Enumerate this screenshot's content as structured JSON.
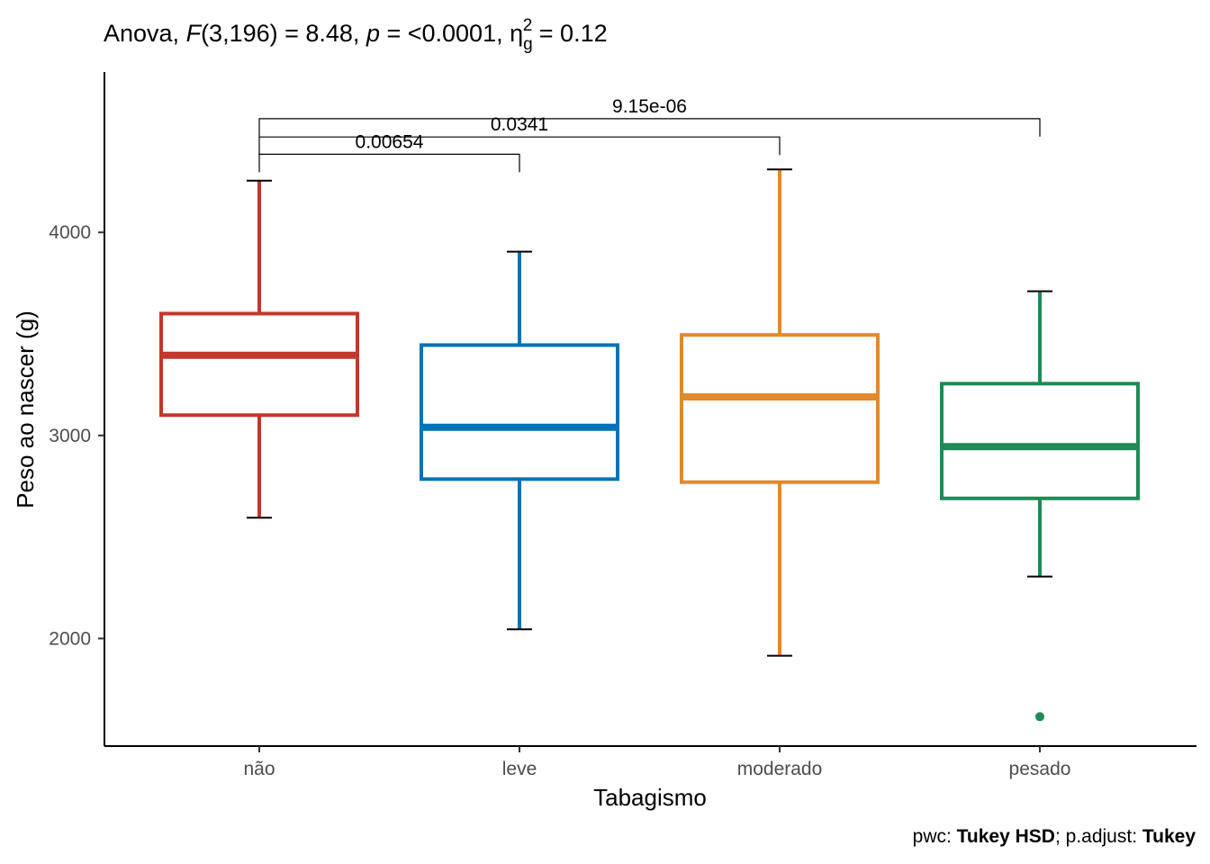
{
  "title": {
    "prefix": "Anova, ",
    "F_symbol": "F",
    "F_df": "(3,196) = 8.48, ",
    "p_symbol": "p",
    "p_value": " = <0.0001, ",
    "eta_symbol": "η",
    "eta_sub": "g",
    "eta_sup": "2",
    "eta_value": " = 0.12"
  },
  "caption": {
    "pwc_label": "pwc: ",
    "pwc_method": "Tukey HSD",
    "sep": "; p.adjust: ",
    "adjust_method": "Tukey"
  },
  "chart_data": {
    "type": "boxplot",
    "xlabel": "Tabagismo",
    "ylabel": "Peso ao nascer (g)",
    "ylim": [
      1470,
      4790
    ],
    "yticks": [
      2000,
      3000,
      4000
    ],
    "grid": false,
    "categories": [
      "não",
      "leve",
      "moderado",
      "pesado"
    ],
    "colors": [
      "#C0392B",
      "#0073B7",
      "#E08A2B",
      "#1F8A57"
    ],
    "boxes": [
      {
        "category": "não",
        "whisker_low": 2595,
        "q1": 3100,
        "median": 3395,
        "q3": 3600,
        "whisker_high": 4255,
        "outliers": []
      },
      {
        "category": "leve",
        "whisker_low": 2045,
        "q1": 2785,
        "median": 3040,
        "q3": 3445,
        "whisker_high": 3905,
        "outliers": []
      },
      {
        "category": "moderado",
        "whisker_low": 1915,
        "q1": 2770,
        "median": 3190,
        "q3": 3495,
        "whisker_high": 4310,
        "outliers": []
      },
      {
        "category": "pesado",
        "whisker_low": 2305,
        "q1": 2690,
        "median": 2945,
        "q3": 3255,
        "whisker_high": 3710,
        "outliers": [
          1615
        ]
      }
    ],
    "comparisons": [
      {
        "group1": "não",
        "group2": "leve",
        "p_adj": "0.00654",
        "y": 4385
      },
      {
        "group1": "não",
        "group2": "moderado",
        "p_adj": "0.0341",
        "y": 4470
      },
      {
        "group1": "não",
        "group2": "pesado",
        "p_adj": "9.15e-06",
        "y": 4560
      }
    ]
  }
}
